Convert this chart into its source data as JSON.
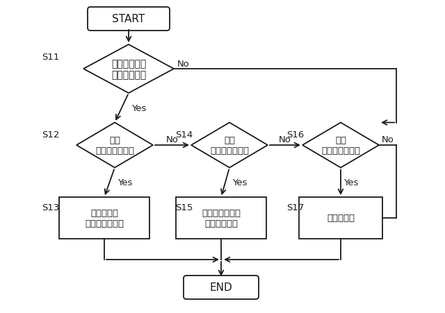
{
  "bg_color": "#ffffff",
  "fig_bg": "#ffffff",
  "node_fill": "#ffffff",
  "line_color": "#1a1a1a",
  "text_color": "#1a1a1a",
  "font_name": "IPAexGothic",
  "start_label": "START",
  "end_label": "END",
  "s11_label": "画像データを\n表示するか？",
  "s12_label": "表側\nフリック操作？",
  "s14_label": "裏側\nフリック操作？",
  "s16_label": "表側\nフリック操作？",
  "s13_label": "データ切替\n（上層＋下層）",
  "s15_label": "画像データのみ\n切替（下層）",
  "s17_label": "データ切替",
  "yes_label": "Yes",
  "no_label": "No"
}
